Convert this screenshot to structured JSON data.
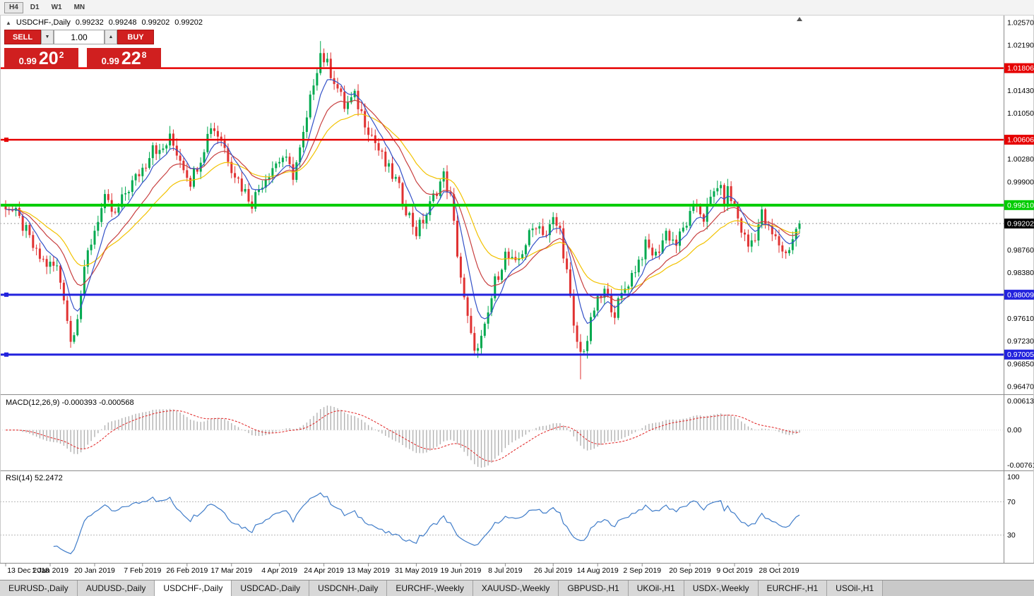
{
  "toolbar": {
    "buttons": [
      {
        "label": "H4",
        "active": true
      },
      {
        "label": "D1",
        "active": false
      },
      {
        "label": "W1",
        "active": false
      },
      {
        "label": "MN",
        "active": false
      }
    ]
  },
  "icons": {
    "volume_down": "▼",
    "volume_up": "▲",
    "symbol_marker": "▲"
  },
  "header": {
    "symbol": "USDCHF-,Daily",
    "open": "0.99232",
    "high": "0.99248",
    "low": "0.99202",
    "close": "0.99202"
  },
  "trade_panel": {
    "sell_label": "SELL",
    "buy_label": "BUY",
    "volume_value": "1.00",
    "sell_price": {
      "prefix": "0.99",
      "big": "20",
      "sup": "2"
    },
    "buy_price": {
      "prefix": "0.99",
      "big": "22",
      "sup": "8"
    }
  },
  "indicators": {
    "macd": {
      "title": "MACD(12,26,9) -0.000393 -0.000568",
      "value": -0.000393,
      "signal_value": -0.000568
    },
    "rsi": {
      "title": "RSI(14) 52.2472",
      "value": 52.2472
    }
  },
  "tabs": {
    "active_index": 2,
    "items": [
      "EURUSD-,Daily",
      "AUDUSD-,Daily",
      "USDCHF-,Daily",
      "USDCAD-,Daily",
      "USDCNH-,Daily",
      "EURCHF-,Weekly",
      "XAUUSD-,Weekly",
      "GBPUSD-,H1",
      "UKOil-,H1",
      "USDX-,Weekly",
      "EURCHF-,H1",
      "USOil-,H1"
    ],
    "active_label": "USDCHF-,Daily"
  },
  "chart_data": {
    "type": "candlestick",
    "symbol": "USDCHF-",
    "timeframe": "Daily",
    "ohlc_display": {
      "open": 0.99232,
      "high": 0.99248,
      "low": 0.99202,
      "close": 0.99202
    },
    "candle_count": 233,
    "x_step": 4.845,
    "noise": 0.0024,
    "last_close": 0.99202,
    "close_anchors": [
      [
        0,
        0.9952
      ],
      [
        3,
        0.9935
      ],
      [
        6,
        0.9906
      ],
      [
        9,
        0.9868
      ],
      [
        12,
        0.9852
      ],
      [
        15,
        0.9846
      ],
      [
        17,
        0.98
      ],
      [
        19,
        0.9722
      ],
      [
        21,
        0.9768
      ],
      [
        24,
        0.987
      ],
      [
        27,
        0.993
      ],
      [
        29,
        0.9958
      ],
      [
        32,
        0.9932
      ],
      [
        35,
        0.9972
      ],
      [
        38,
        0.9996
      ],
      [
        41,
        1.0022
      ],
      [
        43,
        1.0056
      ],
      [
        45,
        1.0036
      ],
      [
        48,
        1.0062
      ],
      [
        51,
        1.003
      ],
      [
        54,
        0.9992
      ],
      [
        57,
        1.0032
      ],
      [
        60,
        1.0086
      ],
      [
        63,
        1.0062
      ],
      [
        66,
        1.0016
      ],
      [
        69,
        0.9982
      ],
      [
        72,
        0.9956
      ],
      [
        75,
        0.999
      ],
      [
        78,
        1.0016
      ],
      [
        81,
        1.0032
      ],
      [
        84,
        1.0002
      ],
      [
        86,
        1.0042
      ],
      [
        88,
        1.0092
      ],
      [
        90,
        1.016
      ],
      [
        92,
        1.0206
      ],
      [
        94,
        1.0186
      ],
      [
        96,
        1.0162
      ],
      [
        99,
        1.0116
      ],
      [
        102,
        1.0132
      ],
      [
        105,
        1.0092
      ],
      [
        108,
        1.0056
      ],
      [
        111,
        1.0018
      ],
      [
        114,
        0.9992
      ],
      [
        117,
        0.9946
      ],
      [
        120,
        0.9906
      ],
      [
        123,
        0.9936
      ],
      [
        126,
        0.9978
      ],
      [
        128,
        1.0
      ],
      [
        130,
        0.9962
      ],
      [
        132,
        0.9872
      ],
      [
        134,
        0.979
      ],
      [
        136,
        0.9728
      ],
      [
        138,
        0.9706
      ],
      [
        140,
        0.9742
      ],
      [
        143,
        0.9822
      ],
      [
        146,
        0.9868
      ],
      [
        149,
        0.9848
      ],
      [
        152,
        0.9888
      ],
      [
        155,
        0.9922
      ],
      [
        158,
        0.9902
      ],
      [
        160,
        0.9925
      ],
      [
        162,
        0.9908
      ],
      [
        164,
        0.9838
      ],
      [
        166,
        0.9742
      ],
      [
        168,
        0.9702
      ],
      [
        170,
        0.9726
      ],
      [
        172,
        0.9778
      ],
      [
        175,
        0.9806
      ],
      [
        178,
        0.9772
      ],
      [
        181,
        0.9812
      ],
      [
        184,
        0.9846
      ],
      [
        187,
        0.9882
      ],
      [
        190,
        0.9866
      ],
      [
        193,
        0.9906
      ],
      [
        196,
        0.9886
      ],
      [
        199,
        0.9922
      ],
      [
        202,
        0.9952
      ],
      [
        204,
        0.993
      ],
      [
        206,
        0.9958
      ],
      [
        208,
        0.9986
      ],
      [
        210,
        0.996
      ],
      [
        211,
        0.9974
      ],
      [
        213,
        0.9948
      ],
      [
        215,
        0.991
      ],
      [
        217,
        0.9882
      ],
      [
        219,
        0.9902
      ],
      [
        221,
        0.9936
      ],
      [
        223,
        0.9908
      ],
      [
        226,
        0.9886
      ],
      [
        228,
        0.9868
      ],
      [
        230,
        0.9896
      ],
      [
        232,
        0.99202
      ]
    ],
    "spikes": [
      {
        "i": 19,
        "low": 0.9712
      },
      {
        "i": 92,
        "high": 1.0226
      },
      {
        "i": 138,
        "low": 0.9695
      },
      {
        "i": 168,
        "low": 0.9659
      }
    ],
    "moving_averages": [
      {
        "name": "ma-fast-blue",
        "period": 7,
        "color": "#3452c8"
      },
      {
        "name": "ma-mid-red",
        "period": 16,
        "color": "#c84040"
      },
      {
        "name": "ma-slow-yellow",
        "period": 28,
        "color": "#f2c200"
      }
    ],
    "hlines": [
      {
        "price": 1.01806,
        "color": "#e60000",
        "width": 2.5,
        "handle": false
      },
      {
        "price": 1.00606,
        "color": "#e60000",
        "width": 2.5,
        "handle": true
      },
      {
        "price": 0.9951,
        "color": "#00cc00",
        "width": 4,
        "handle": false
      },
      {
        "price": 0.98009,
        "color": "#2222dd",
        "width": 3,
        "handle": true
      },
      {
        "price": 0.97005,
        "color": "#2222dd",
        "width": 3,
        "handle": true
      }
    ],
    "price_axis": {
      "max": 1.0257,
      "min": 0.9647,
      "ticks": [
        1.0257,
        1.0219,
        1.0143,
        1.0105,
        1.0028,
        0.999,
        0.9876,
        0.9838,
        0.9761,
        0.9723,
        0.9685,
        0.9647
      ],
      "current_label_bg": "#000000"
    },
    "macd": {
      "fast": 12,
      "slow": 26,
      "signal": 9,
      "axis_max": 0.00613,
      "axis_min": -0.00761,
      "axis_max_label": "0.00613",
      "axis_zero_label": "0.00",
      "axis_min_label": "-0.00761",
      "histogram_color": "#b2b2b2",
      "signal_color": "#e02020"
    },
    "rsi": {
      "period": 14,
      "levels": [
        70,
        30
      ],
      "line_color": "#3f7cc9",
      "axis_labels": [
        {
          "label": "100",
          "value": 100
        },
        {
          "label": "70",
          "value": 70
        },
        {
          "label": "30",
          "value": 30
        }
      ]
    },
    "date_labels": [
      {
        "label": "13 Dec 2018",
        "i": 0
      },
      {
        "label": "1 Jan 2019",
        "i": 13
      },
      {
        "label": "20 Jan 2019",
        "i": 26
      },
      {
        "label": "7 Feb 2019",
        "i": 40
      },
      {
        "label": "26 Feb 2019",
        "i": 53
      },
      {
        "label": "17 Mar 2019",
        "i": 66
      },
      {
        "label": "4 Apr 2019",
        "i": 80
      },
      {
        "label": "24 Apr 2019",
        "i": 93
      },
      {
        "label": "13 May 2019",
        "i": 106
      },
      {
        "label": "31 May 2019",
        "i": 120
      },
      {
        "label": "19 Jun 2019",
        "i": 133
      },
      {
        "label": "8 Jul 2019",
        "i": 146
      },
      {
        "label": "26 Jul 2019",
        "i": 160
      },
      {
        "label": "14 Aug 2019",
        "i": 173
      },
      {
        "label": "2 Sep 2019",
        "i": 186
      },
      {
        "label": "20 Sep 2019",
        "i": 200
      },
      {
        "label": "9 Oct 2019",
        "i": 213
      },
      {
        "label": "28 Oct 2019",
        "i": 226
      }
    ],
    "colors": {
      "bull": "#00a94f",
      "bear": "#e03232",
      "current_line": "#999999"
    }
  }
}
